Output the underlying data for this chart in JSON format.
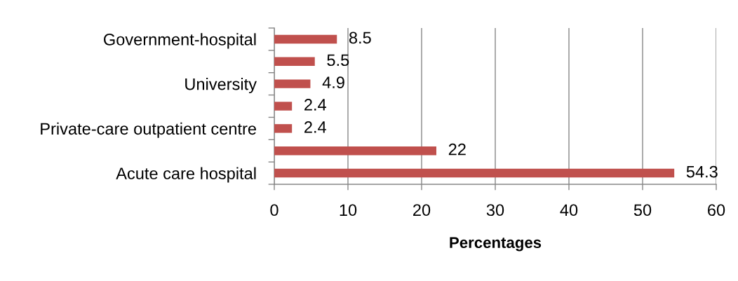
{
  "chart_data": {
    "type": "bar",
    "orientation": "horizontal",
    "xlabel": "Percentages",
    "categories": [
      "Government-hospital",
      null,
      "University",
      null,
      "Private-care outpatient centre",
      null,
      "Acute care hospital"
    ],
    "values": [
      8.5,
      5.5,
      4.9,
      2.4,
      2.4,
      22,
      54.3
    ],
    "color": "#c0504d",
    "data_labels": true,
    "xlim": [
      0,
      60
    ],
    "xticks": [
      0,
      10,
      20,
      30,
      40,
      50,
      60
    ],
    "grid": "x"
  }
}
